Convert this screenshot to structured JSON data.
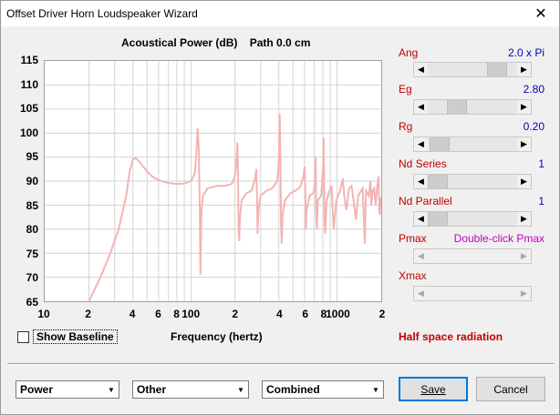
{
  "window": {
    "title": "Offset Driver Horn Loudspeaker Wizard",
    "close_label": "✕"
  },
  "chart": {
    "title_measure": "Acoustical Power (dB)",
    "title_path": "Path 0.0 cm",
    "xlabel": "Frequency (hertz)"
  },
  "chart_data": {
    "type": "line",
    "x_scale": "log",
    "xlim": [
      10,
      2000
    ],
    "ylim": [
      65,
      115
    ],
    "yticks": [
      "115",
      "110",
      "105",
      "100",
      "95",
      "90",
      "85",
      "80",
      "75",
      "70",
      "65"
    ],
    "xticks": [
      {
        "label": "10",
        "value": 10
      },
      {
        "label": "2",
        "value": 20
      },
      {
        "label": "4",
        "value": 40
      },
      {
        "label": "6",
        "value": 60
      },
      {
        "label": "8",
        "value": 80
      },
      {
        "label": "100",
        "value": 100
      },
      {
        "label": "2",
        "value": 200
      },
      {
        "label": "4",
        "value": 400
      },
      {
        "label": "6",
        "value": 600
      },
      {
        "label": "8",
        "value": 800
      },
      {
        "label": "1000",
        "value": 1000
      },
      {
        "label": "2",
        "value": 2000
      }
    ],
    "grid": true,
    "series": [
      {
        "color": "#f4b3b3",
        "points": [
          [
            20,
            65
          ],
          [
            24,
            70
          ],
          [
            28,
            75
          ],
          [
            32,
            80
          ],
          [
            36,
            87
          ],
          [
            38,
            92
          ],
          [
            40,
            94.5
          ],
          [
            42,
            94.8
          ],
          [
            45,
            93.8
          ],
          [
            50,
            92
          ],
          [
            55,
            90.8
          ],
          [
            60,
            90.2
          ],
          [
            70,
            89.6
          ],
          [
            80,
            89.4
          ],
          [
            90,
            89.5
          ],
          [
            100,
            90
          ],
          [
            106,
            91.5
          ],
          [
            109,
            96
          ],
          [
            111,
            101
          ],
          [
            113,
            97
          ],
          [
            115,
            84
          ],
          [
            116,
            70.5
          ],
          [
            118,
            84
          ],
          [
            121,
            87
          ],
          [
            130,
            88.5
          ],
          [
            150,
            89
          ],
          [
            170,
            89
          ],
          [
            190,
            89.4
          ],
          [
            200,
            91
          ],
          [
            206,
            95
          ],
          [
            208,
            98
          ],
          [
            210,
            92
          ],
          [
            212,
            80
          ],
          [
            214,
            77.5
          ],
          [
            216,
            82
          ],
          [
            222,
            86
          ],
          [
            240,
            87.5
          ],
          [
            260,
            88
          ],
          [
            275,
            90.5
          ],
          [
            280,
            92.5
          ],
          [
            283,
            88
          ],
          [
            286,
            79
          ],
          [
            290,
            84
          ],
          [
            300,
            87
          ],
          [
            330,
            88
          ],
          [
            360,
            88.5
          ],
          [
            390,
            90
          ],
          [
            400,
            94
          ],
          [
            405,
            104
          ],
          [
            410,
            95
          ],
          [
            414,
            81
          ],
          [
            418,
            77
          ],
          [
            424,
            83
          ],
          [
            440,
            86
          ],
          [
            480,
            87.5
          ],
          [
            520,
            88
          ],
          [
            560,
            88.8
          ],
          [
            590,
            91
          ],
          [
            600,
            93
          ],
          [
            607,
            88
          ],
          [
            612,
            80
          ],
          [
            620,
            84
          ],
          [
            650,
            87
          ],
          [
            690,
            87.5
          ],
          [
            710,
            90
          ],
          [
            715,
            95
          ],
          [
            720,
            84
          ],
          [
            728,
            80
          ],
          [
            740,
            86
          ],
          [
            780,
            87
          ],
          [
            808,
            94
          ],
          [
            812,
            99
          ],
          [
            816,
            91
          ],
          [
            821,
            82
          ],
          [
            830,
            79
          ],
          [
            850,
            86
          ],
          [
            890,
            88
          ],
          [
            920,
            89
          ],
          [
            935,
            84
          ],
          [
            950,
            80
          ],
          [
            990,
            86
          ],
          [
            1050,
            88
          ],
          [
            1100,
            90.5
          ],
          [
            1120,
            87
          ],
          [
            1160,
            84
          ],
          [
            1210,
            88.5
          ],
          [
            1260,
            89
          ],
          [
            1300,
            86
          ],
          [
            1350,
            82
          ],
          [
            1400,
            87
          ],
          [
            1500,
            88.5
          ],
          [
            1550,
            77
          ],
          [
            1580,
            88
          ],
          [
            1650,
            87
          ],
          [
            1700,
            90
          ],
          [
            1720,
            85
          ],
          [
            1760,
            88
          ],
          [
            1800,
            88.5
          ],
          [
            1840,
            85
          ],
          [
            1890,
            89
          ],
          [
            1930,
            91
          ],
          [
            1950,
            84
          ],
          [
            1970,
            83
          ],
          [
            1990,
            86
          ],
          [
            2000,
            86.5
          ]
        ]
      }
    ]
  },
  "controls": {
    "ang": {
      "label": "Ang",
      "value": "2.0 x Pi",
      "position": 0.85
    },
    "eg": {
      "label": "Eg",
      "value": "2.80",
      "position": 0.28
    },
    "rg": {
      "label": "Rg",
      "value": "0.20",
      "position": 0.02
    },
    "nd_series": {
      "label": "Nd  Series",
      "value": "1",
      "position": 0
    },
    "nd_parallel": {
      "label": "Nd  Parallel",
      "value": "1",
      "position": 0
    },
    "pmax": {
      "label": "Pmax",
      "value": "Double-click Pmax"
    },
    "xmax": {
      "label": "Xmax"
    }
  },
  "show_baseline": {
    "label": "Show Baseline",
    "checked": false
  },
  "status": {
    "half_space": "Half space radiation"
  },
  "dropdowns": {
    "measure": "Power",
    "variant": "Other",
    "mode": "Combined"
  },
  "buttons": {
    "save": "Save",
    "cancel": "Cancel"
  },
  "colors": {
    "curve": "#f4b3b3",
    "label_red": "#c00000",
    "value_blue": "#0000c0",
    "value_magenta": "#c000c0"
  }
}
